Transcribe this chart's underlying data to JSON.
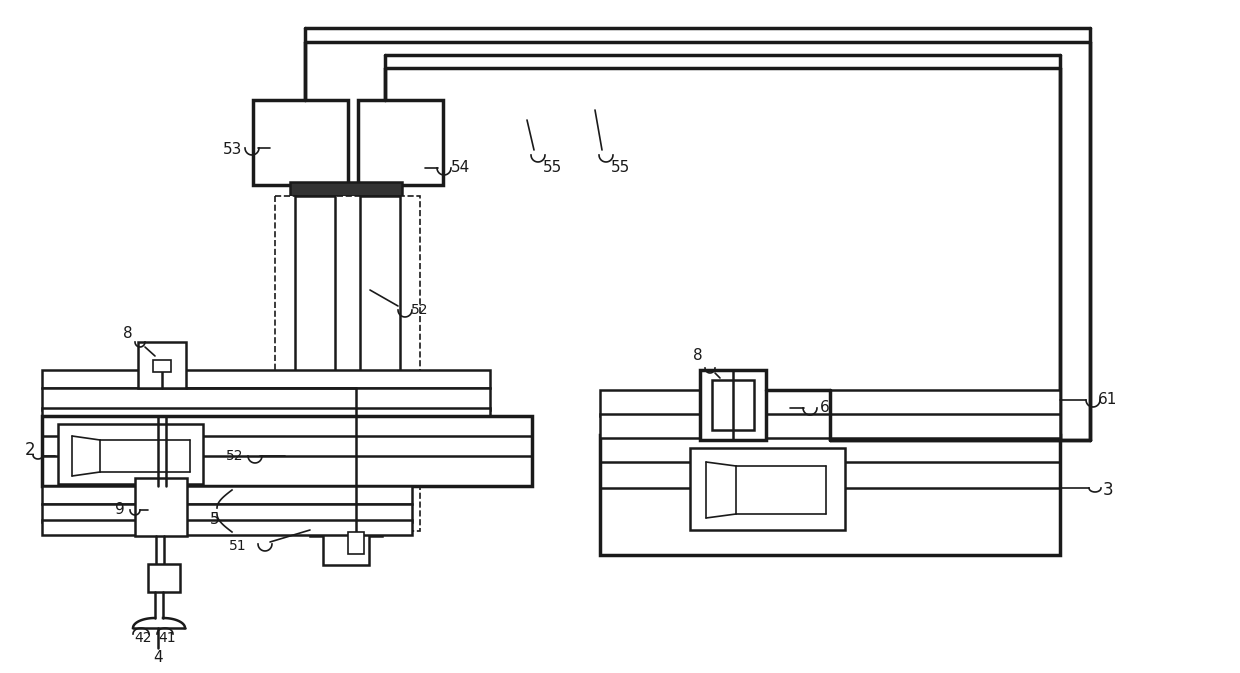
{
  "bg_color": "#ffffff",
  "line_color": "#1a1a1a",
  "figsize": [
    12.4,
    6.73
  ],
  "dpi": 100
}
